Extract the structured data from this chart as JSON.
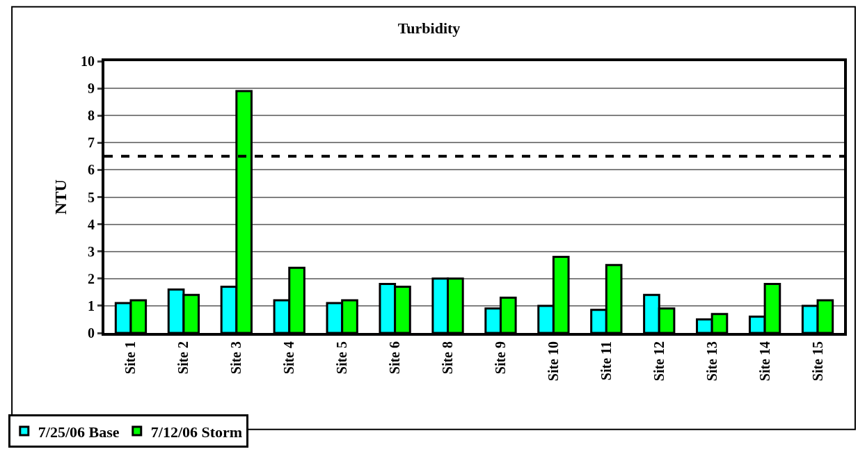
{
  "chart_data": {
    "type": "bar",
    "title": "Turbidity",
    "ylabel": "NTU",
    "categories": [
      "Site 1",
      "Site 2",
      "Site 3",
      "Site 4",
      "Site 5",
      "Site 6",
      "Site 8",
      "Site 9",
      "Site 10",
      "Site 11",
      "Site 12",
      "Site 13",
      "Site 14",
      "Site 15"
    ],
    "series": [
      {
        "name": "7/25/06 Base",
        "color": "#00ffff",
        "values": [
          1.1,
          1.6,
          1.7,
          1.2,
          1.1,
          1.8,
          2.0,
          0.9,
          1.0,
          0.85,
          1.4,
          0.5,
          0.6,
          1.0
        ]
      },
      {
        "name": "7/12/06 Storm",
        "color": "#00ff00",
        "values": [
          1.2,
          1.4,
          8.9,
          2.4,
          1.2,
          1.7,
          2.0,
          1.3,
          2.8,
          2.5,
          0.9,
          0.7,
          1.8,
          1.2
        ]
      }
    ],
    "ylim": [
      0,
      10
    ],
    "yticks": [
      0,
      1,
      2,
      3,
      4,
      5,
      6,
      7,
      8,
      9,
      10
    ],
    "grid": "y",
    "legend": "bottom left",
    "ref_lines": [
      {
        "axis": "y",
        "value": 6.5,
        "color": "#000000",
        "line_style": "dashed"
      }
    ]
  }
}
